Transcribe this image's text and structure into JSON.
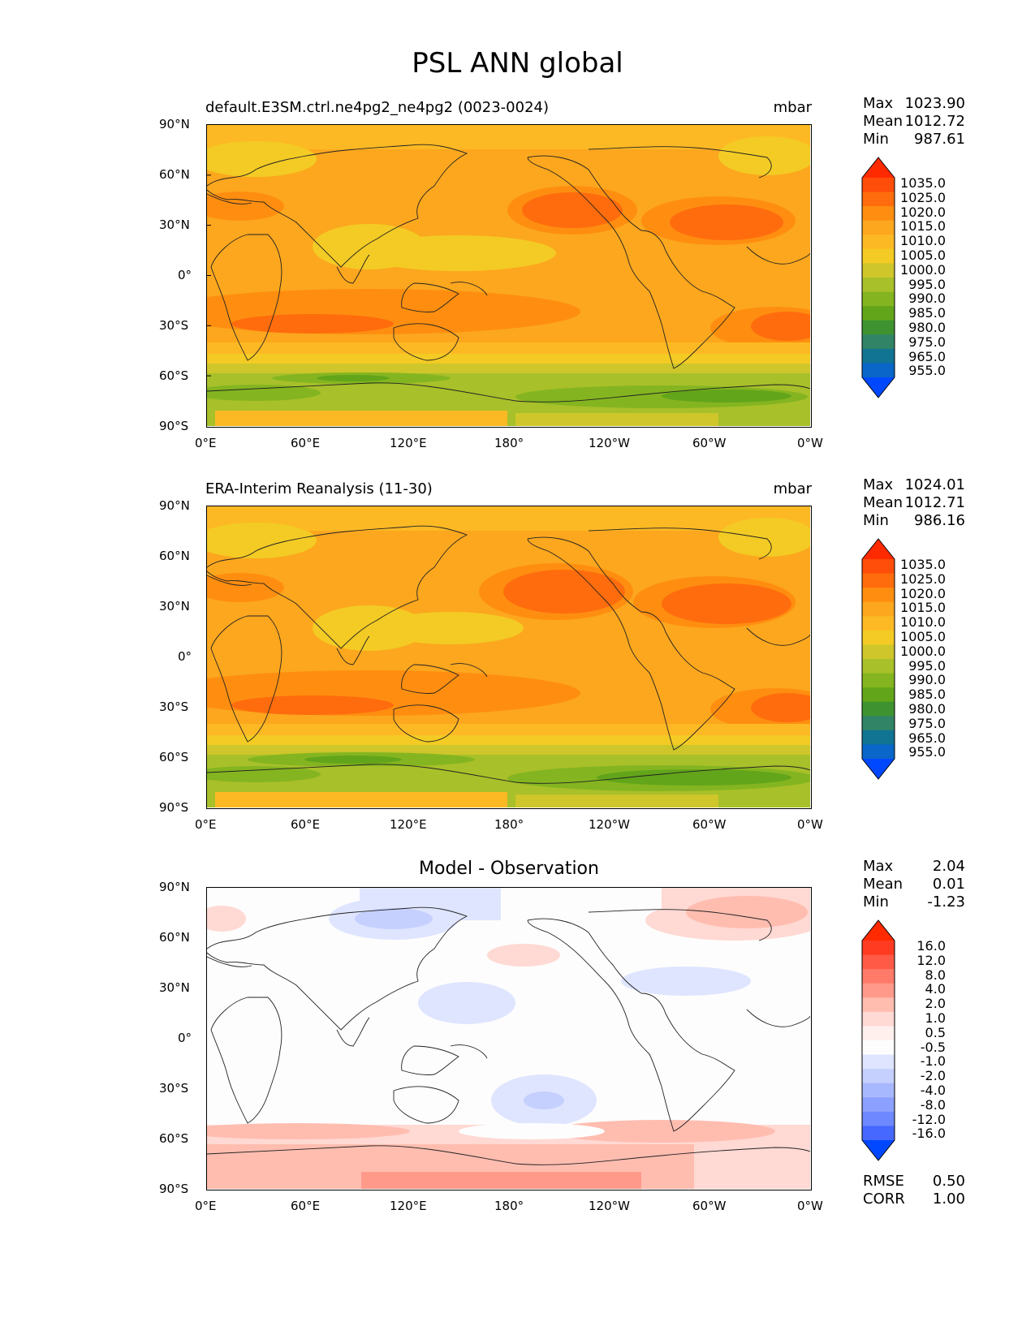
{
  "suptitle": "PSL ANN global",
  "axes": {
    "lat_ticks": [
      "90°N",
      "60°N",
      "30°N",
      "0°",
      "30°S",
      "60°S",
      "90°S"
    ],
    "lon_ticks": [
      "0°E",
      "60°E",
      "120°E",
      "180°",
      "120°W",
      "60°W",
      "0°W"
    ]
  },
  "panels": [
    {
      "id": "model",
      "title_left": "default.E3SM.ctrl.ne4pg2_ne4pg2 (0023-0024)",
      "title_right": "mbar",
      "title_center": "",
      "stats": [
        {
          "label": "Max",
          "value": "1023.90"
        },
        {
          "label": "Mean",
          "value": "1012.72"
        },
        {
          "label": "Min",
          "value": "987.61"
        }
      ],
      "colorbar": {
        "levels": [
          "1035.0",
          "1025.0",
          "1020.0",
          "1015.0",
          "1010.0",
          "1005.0",
          "1000.0",
          "995.0",
          "990.0",
          "985.0",
          "980.0",
          "975.0",
          "965.0",
          "955.0"
        ],
        "colors": [
          "#ff2a00",
          "#ff4d0a",
          "#ff6c0d",
          "#ff8e10",
          "#fca71e",
          "#fdb924",
          "#f3cb24",
          "#cec62a",
          "#a8c02a",
          "#84b520",
          "#62a51a",
          "#3e9330",
          "#318466",
          "#117493",
          "#0a66c8",
          "#0048ff"
        ]
      }
    },
    {
      "id": "obs",
      "title_left": "ERA-Interim Reanalysis (11-30)",
      "title_right": "mbar",
      "title_center": "",
      "stats": [
        {
          "label": "Max",
          "value": "1024.01"
        },
        {
          "label": "Mean",
          "value": "1012.71"
        },
        {
          "label": "Min",
          "value": "986.16"
        }
      ],
      "colorbar": {
        "levels": [
          "1035.0",
          "1025.0",
          "1020.0",
          "1015.0",
          "1010.0",
          "1005.0",
          "1000.0",
          "995.0",
          "990.0",
          "985.0",
          "980.0",
          "975.0",
          "965.0",
          "955.0"
        ],
        "colors": [
          "#ff2a00",
          "#ff4d0a",
          "#ff6c0d",
          "#ff8e10",
          "#fca71e",
          "#fdb924",
          "#f3cb24",
          "#cec62a",
          "#a8c02a",
          "#84b520",
          "#62a51a",
          "#3e9330",
          "#318466",
          "#117493",
          "#0a66c8",
          "#0048ff"
        ]
      }
    },
    {
      "id": "diff",
      "title_left": "",
      "title_right": "",
      "title_center": "Model - Observation",
      "stats": [
        {
          "label": "Max",
          "value": "2.04"
        },
        {
          "label": "Mean",
          "value": "0.01"
        },
        {
          "label": "Min",
          "value": "-1.23"
        }
      ],
      "colorbar": {
        "levels": [
          "16.0",
          "12.0",
          "8.0",
          "4.0",
          "2.0",
          "1.0",
          "0.5",
          "-0.5",
          "-1.0",
          "-2.0",
          "-4.0",
          "-8.0",
          "-12.0",
          "-16.0"
        ],
        "colors": [
          "#ff2a00",
          "#ff3b22",
          "#ff5a45",
          "#ff7a68",
          "#ff9a8b",
          "#ffbdb0",
          "#ffd9d3",
          "#fff0ee",
          "#fdfdfd",
          "#dfe5ff",
          "#c5d0ff",
          "#a8b8ff",
          "#8ca1ff",
          "#6e88ff",
          "#4668ff",
          "#0048ff"
        ]
      },
      "summary": [
        {
          "label": "RMSE",
          "value": "0.50"
        },
        {
          "label": "CORR",
          "value": "1.00"
        }
      ]
    }
  ]
}
